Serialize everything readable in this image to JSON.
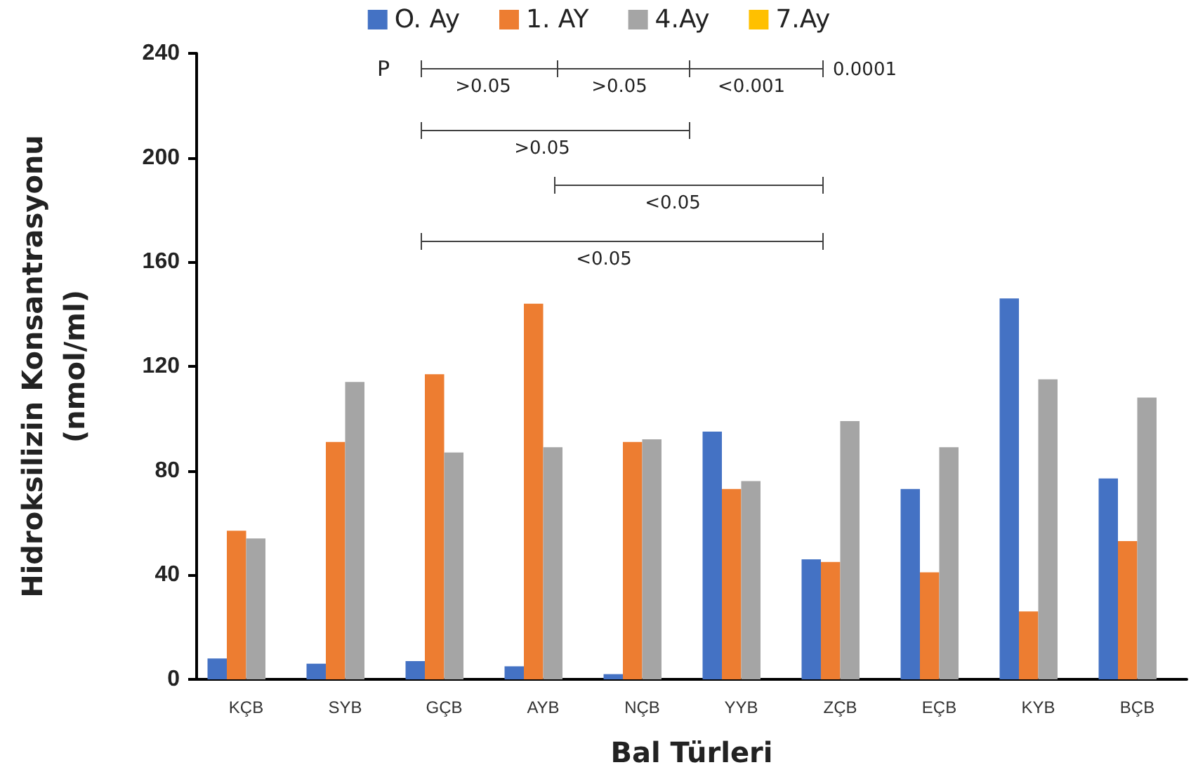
{
  "chart_data": {
    "type": "bar",
    "xlabel": "Bal Türleri",
    "ylabel": "Hidroksilizin Konsantrasyonu\n(nmol/ml)",
    "categories": [
      "KÇB",
      "SYB",
      "GÇB",
      "AYB",
      "NÇB",
      "YYB",
      "ZÇB",
      "EÇB",
      "KYB",
      "BÇB"
    ],
    "series": [
      {
        "name": "O. Ay",
        "color": "#4472c4",
        "values": [
          8,
          6,
          7,
          5,
          2,
          95,
          46,
          73,
          146,
          77
        ]
      },
      {
        "name": "1. AY",
        "color": "#ed7d31",
        "values": [
          57,
          91,
          117,
          144,
          91,
          73,
          45,
          41,
          26,
          53
        ]
      },
      {
        "name": "4.Ay",
        "color": "#a5a5a5",
        "values": [
          54,
          114,
          87,
          89,
          92,
          76,
          99,
          89,
          115,
          108
        ]
      },
      {
        "name": "7.Ay",
        "color": "#ffc000",
        "values": [
          null,
          null,
          null,
          null,
          null,
          null,
          null,
          null,
          null,
          null
        ]
      }
    ],
    "ylim": [
      0,
      240
    ],
    "yticks": [
      0,
      40,
      80,
      120,
      160,
      200,
      240
    ],
    "grid": false,
    "legend": "top",
    "annotations": [
      "P",
      ">0.05",
      ">0.05",
      "<0.001",
      "0.0001",
      ">0.05",
      "<0.05",
      "<0.05"
    ]
  }
}
